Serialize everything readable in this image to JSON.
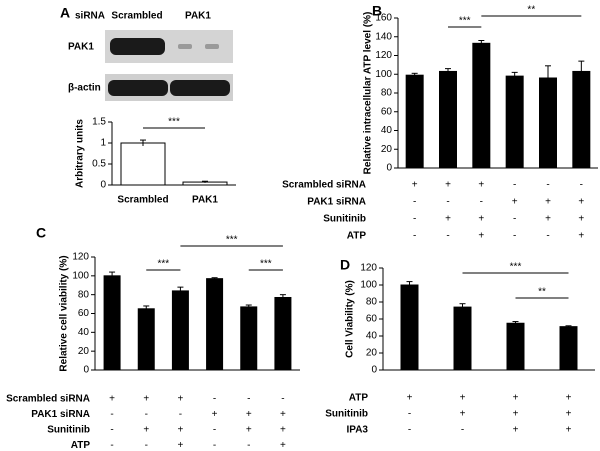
{
  "blot": {
    "header": "siRNA",
    "lanes": [
      "Scrambled",
      "PAK1"
    ],
    "rows": [
      "PAK1",
      "β-actin"
    ]
  },
  "chart_data": [
    {
      "type": "bar",
      "panel": "A",
      "ylabel": "Arbitrary units",
      "categories": [
        "Scrambled",
        "PAK1"
      ],
      "values": [
        1.0,
        0.07
      ],
      "errors": [
        0.07,
        0.02
      ],
      "ylim": [
        0,
        1.5
      ],
      "yticks": [
        0,
        0.5,
        1,
        1.5
      ],
      "color": "#ffffff",
      "annotations": [
        "***"
      ]
    },
    {
      "type": "bar",
      "panel": "B",
      "ylabel": "Relative intracellular ATP level (%)",
      "values": [
        99,
        103,
        133,
        98,
        96,
        103
      ],
      "errors": [
        2,
        3,
        3,
        4,
        13,
        11
      ],
      "ylim": [
        0,
        160
      ],
      "yticks": [
        0,
        20,
        40,
        60,
        80,
        100,
        120,
        140,
        160
      ],
      "color": "#000000",
      "annotations": [
        "***",
        "**"
      ],
      "treatments": [
        {
          "label": "Scrambled siRNA",
          "signs": [
            "+",
            "+",
            "+",
            "-",
            "-",
            "-"
          ]
        },
        {
          "label": "PAK1 siRNA",
          "signs": [
            "-",
            "-",
            "-",
            "+",
            "+",
            "+"
          ]
        },
        {
          "label": "Sunitinib",
          "signs": [
            "-",
            "+",
            "+",
            "-",
            "+",
            "+"
          ]
        },
        {
          "label": "ATP",
          "signs": [
            "-",
            "-",
            "+",
            "-",
            "-",
            "+"
          ]
        }
      ]
    },
    {
      "type": "bar",
      "panel": "C",
      "ylabel": "Relative cell viability (%)",
      "values": [
        100,
        65,
        84,
        97,
        67,
        77
      ],
      "errors": [
        4,
        3,
        4,
        1,
        2,
        3
      ],
      "ylim": [
        0,
        120
      ],
      "yticks": [
        0,
        20,
        40,
        60,
        80,
        100,
        120
      ],
      "color": "#000000",
      "annotations": [
        "***",
        "***",
        "***"
      ],
      "treatments": [
        {
          "label": "Scrambled siRNA",
          "signs": [
            "+",
            "+",
            "+",
            "-",
            "-",
            "-"
          ]
        },
        {
          "label": "PAK1 siRNA",
          "signs": [
            "-",
            "-",
            "-",
            "+",
            "+",
            "+"
          ]
        },
        {
          "label": "Sunitinib",
          "signs": [
            "-",
            "+",
            "+",
            "-",
            "+",
            "+"
          ]
        },
        {
          "label": "ATP",
          "signs": [
            "-",
            "-",
            "+",
            "-",
            "-",
            "+"
          ]
        }
      ]
    },
    {
      "type": "bar",
      "panel": "D",
      "ylabel": "Cell Viability (%)",
      "values": [
        100,
        74,
        55,
        51
      ],
      "errors": [
        4,
        4,
        2,
        1
      ],
      "ylim": [
        0,
        120
      ],
      "yticks": [
        0,
        20,
        40,
        60,
        80,
        100,
        120
      ],
      "color": "#000000",
      "annotations": [
        "***",
        "**"
      ],
      "treatments": [
        {
          "label": "ATP",
          "signs": [
            "+",
            "+",
            "+",
            "+"
          ]
        },
        {
          "label": "Sunitinib",
          "signs": [
            "-",
            "+",
            "+",
            "+"
          ]
        },
        {
          "label": "IPA3",
          "signs": [
            "-",
            "-",
            "+",
            "+"
          ]
        }
      ]
    }
  ]
}
